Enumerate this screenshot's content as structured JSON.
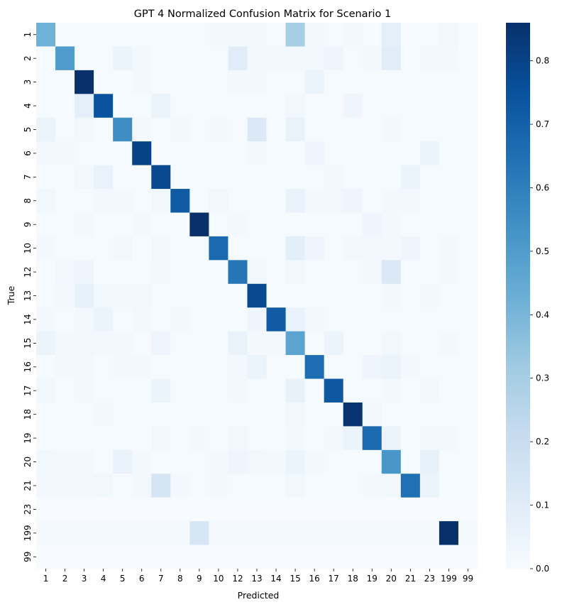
{
  "chart_data": {
    "type": "heatmap",
    "title": "GPT 4 Normalized Confusion Matrix for Scenario 1",
    "xlabel": "Predicted",
    "ylabel": "True",
    "row_labels": [
      "1",
      "2",
      "3",
      "4",
      "5",
      "6",
      "7",
      "8",
      "9",
      "10",
      "12",
      "13",
      "14",
      "15",
      "16",
      "17",
      "18",
      "19",
      "20",
      "21",
      "23",
      "199",
      "99"
    ],
    "col_labels": [
      "1",
      "2",
      "3",
      "4",
      "5",
      "6",
      "7",
      "8",
      "9",
      "10",
      "12",
      "13",
      "14",
      "15",
      "16",
      "17",
      "18",
      "19",
      "20",
      "21",
      "23",
      "199",
      "99"
    ],
    "colormap": "Blues",
    "vmin": 0,
    "vmax": 0.86,
    "colorbar_ticks": [
      "0.0",
      "0.1",
      "0.2",
      "0.3",
      "0.4",
      "0.5",
      "0.6",
      "0.7",
      "0.8"
    ],
    "values": [
      [
        0.42,
        0.01,
        0.01,
        0.01,
        0.01,
        0.01,
        0.01,
        0.01,
        0.01,
        0.02,
        0.02,
        0.03,
        0.01,
        0.3,
        0.02,
        0.01,
        0.02,
        0.01,
        0.08,
        0.01,
        0.01,
        0.03,
        0.01
      ],
      [
        0.01,
        0.5,
        0.01,
        0.01,
        0.05,
        0.02,
        0.01,
        0.01,
        0.01,
        0.01,
        0.1,
        0.02,
        0.02,
        0.02,
        0.02,
        0.04,
        0.01,
        0.02,
        0.1,
        0.01,
        0.02,
        0.02,
        0.01
      ],
      [
        0.01,
        0.01,
        0.86,
        0.01,
        0.01,
        0.02,
        0.01,
        0.01,
        0.01,
        0.01,
        0.02,
        0.02,
        0.01,
        0.01,
        0.05,
        0.01,
        0.01,
        0.01,
        0.01,
        0.01,
        0.01,
        0.01,
        0.01
      ],
      [
        0.01,
        0.01,
        0.08,
        0.75,
        0.01,
        0.01,
        0.05,
        0.01,
        0.01,
        0.01,
        0.01,
        0.01,
        0.01,
        0.03,
        0.01,
        0.01,
        0.04,
        0.01,
        0.01,
        0.01,
        0.01,
        0.01,
        0.01
      ],
      [
        0.05,
        0.01,
        0.03,
        0.01,
        0.55,
        0.02,
        0.01,
        0.02,
        0.01,
        0.02,
        0.01,
        0.12,
        0.01,
        0.06,
        0.01,
        0.01,
        0.01,
        0.01,
        0.02,
        0.01,
        0.01,
        0.01,
        0.01
      ],
      [
        0.02,
        0.02,
        0.01,
        0.01,
        0.01,
        0.8,
        0.01,
        0.01,
        0.01,
        0.01,
        0.01,
        0.02,
        0.01,
        0.01,
        0.04,
        0.01,
        0.01,
        0.01,
        0.01,
        0.01,
        0.05,
        0.01,
        0.01
      ],
      [
        0.01,
        0.01,
        0.03,
        0.06,
        0.01,
        0.01,
        0.78,
        0.01,
        0.01,
        0.01,
        0.01,
        0.01,
        0.01,
        0.01,
        0.01,
        0.02,
        0.01,
        0.01,
        0.01,
        0.05,
        0.01,
        0.01,
        0.01
      ],
      [
        0.03,
        0.01,
        0.01,
        0.02,
        0.02,
        0.01,
        0.03,
        0.72,
        0.01,
        0.03,
        0.01,
        0.01,
        0.01,
        0.06,
        0.02,
        0.03,
        0.04,
        0.01,
        0.02,
        0.02,
        0.01,
        0.01,
        0.01
      ],
      [
        0.01,
        0.01,
        0.02,
        0.01,
        0.01,
        0.02,
        0.01,
        0.01,
        0.86,
        0.01,
        0.02,
        0.01,
        0.01,
        0.01,
        0.01,
        0.01,
        0.01,
        0.04,
        0.02,
        0.01,
        0.01,
        0.01,
        0.01
      ],
      [
        0.02,
        0.01,
        0.01,
        0.01,
        0.03,
        0.01,
        0.03,
        0.01,
        0.01,
        0.67,
        0.01,
        0.01,
        0.01,
        0.09,
        0.04,
        0.01,
        0.03,
        0.02,
        0.02,
        0.04,
        0.01,
        0.02,
        0.01
      ],
      [
        0.01,
        0.03,
        0.04,
        0.01,
        0.01,
        0.01,
        0.02,
        0.01,
        0.01,
        0.01,
        0.63,
        0.03,
        0.01,
        0.03,
        0.01,
        0.01,
        0.01,
        0.02,
        0.12,
        0.01,
        0.01,
        0.02,
        0.01
      ],
      [
        0.01,
        0.02,
        0.07,
        0.03,
        0.03,
        0.03,
        0.01,
        0.01,
        0.01,
        0.01,
        0.01,
        0.78,
        0.01,
        0.01,
        0.01,
        0.01,
        0.01,
        0.01,
        0.02,
        0.01,
        0.02,
        0.01,
        0.01
      ],
      [
        0.02,
        0.01,
        0.02,
        0.05,
        0.01,
        0.02,
        0.01,
        0.02,
        0.01,
        0.01,
        0.01,
        0.04,
        0.72,
        0.06,
        0.02,
        0.01,
        0.01,
        0.01,
        0.01,
        0.01,
        0.01,
        0.01,
        0.01
      ],
      [
        0.05,
        0.02,
        0.03,
        0.02,
        0.02,
        0.01,
        0.04,
        0.01,
        0.01,
        0.01,
        0.06,
        0.02,
        0.03,
        0.47,
        0.01,
        0.05,
        0.01,
        0.01,
        0.03,
        0.01,
        0.01,
        0.02,
        0.01
      ],
      [
        0.01,
        0.02,
        0.02,
        0.01,
        0.02,
        0.02,
        0.01,
        0.01,
        0.01,
        0.01,
        0.02,
        0.05,
        0.01,
        0.01,
        0.66,
        0.01,
        0.01,
        0.04,
        0.05,
        0.02,
        0.01,
        0.01,
        0.01
      ],
      [
        0.03,
        0.01,
        0.02,
        0.01,
        0.01,
        0.01,
        0.05,
        0.01,
        0.01,
        0.01,
        0.02,
        0.01,
        0.01,
        0.07,
        0.01,
        0.73,
        0.01,
        0.01,
        0.02,
        0.01,
        0.03,
        0.01,
        0.01
      ],
      [
        0.01,
        0.01,
        0.01,
        0.02,
        0.01,
        0.01,
        0.01,
        0.01,
        0.01,
        0.01,
        0.01,
        0.01,
        0.01,
        0.03,
        0.01,
        0.01,
        0.85,
        0.03,
        0.01,
        0.01,
        0.01,
        0.01,
        0.01
      ],
      [
        0.01,
        0.01,
        0.01,
        0.01,
        0.01,
        0.01,
        0.03,
        0.01,
        0.02,
        0.01,
        0.03,
        0.01,
        0.01,
        0.02,
        0.01,
        0.02,
        0.05,
        0.67,
        0.05,
        0.01,
        0.02,
        0.02,
        0.01
      ],
      [
        0.03,
        0.02,
        0.02,
        0.01,
        0.06,
        0.02,
        0.01,
        0.01,
        0.01,
        0.02,
        0.04,
        0.03,
        0.02,
        0.05,
        0.02,
        0.01,
        0.01,
        0.01,
        0.52,
        0.01,
        0.07,
        0.01,
        0.01
      ],
      [
        0.02,
        0.02,
        0.02,
        0.03,
        0.01,
        0.02,
        0.15,
        0.02,
        0.01,
        0.02,
        0.01,
        0.01,
        0.01,
        0.03,
        0.01,
        0.01,
        0.01,
        0.02,
        0.03,
        0.65,
        0.05,
        0.01,
        0.01
      ],
      [
        0,
        0,
        0,
        0,
        0,
        0,
        0,
        0,
        0,
        0,
        0,
        0,
        0,
        0,
        0,
        0,
        0,
        0,
        0,
        0,
        0,
        0,
        0
      ],
      [
        0.015,
        0.015,
        0.015,
        0.015,
        0.015,
        0.015,
        0.015,
        0.015,
        0.14,
        0.015,
        0.015,
        0.015,
        0.015,
        0.015,
        0.015,
        0.015,
        0.015,
        0.015,
        0.015,
        0.015,
        0.015,
        0.86,
        0.015
      ],
      [
        0,
        0,
        0,
        0,
        0,
        0,
        0,
        0,
        0,
        0,
        0,
        0,
        0,
        0,
        0,
        0,
        0,
        0,
        0,
        0,
        0,
        0,
        0
      ]
    ]
  }
}
